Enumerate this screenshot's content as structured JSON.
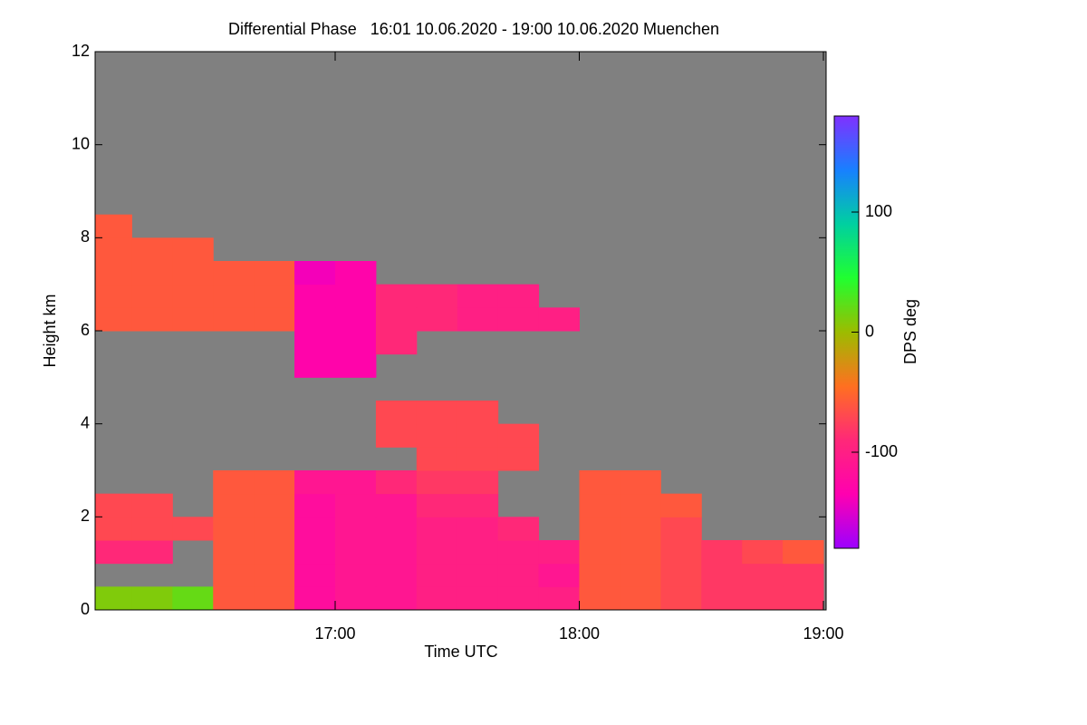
{
  "chart_data": {
    "type": "heatmap",
    "title": "Differential Phase   16:01 10.06.2020 - 19:00 10.06.2020 Muenchen",
    "x_label": "Time UTC",
    "y_label": "Height km",
    "colorbar_label": "DPS deg",
    "xlim": [
      16.0167,
      19.0
    ],
    "ylim": [
      0,
      12
    ],
    "xticks": [
      {
        "value": 17,
        "label": "17:00"
      },
      {
        "value": 18,
        "label": "18:00"
      },
      {
        "value": 19,
        "label": "19:00"
      }
    ],
    "yticks": [
      0,
      2,
      4,
      6,
      8,
      10,
      12
    ],
    "clim": [
      -180,
      180
    ],
    "colorbar_ticks": [
      100,
      0,
      -100
    ],
    "colormap": [
      "#9c00ff",
      "#ff00b0",
      "#ff2878",
      "#ff7020",
      "#9cbc00",
      "#20ff30",
      "#00d0a0",
      "#1880ff",
      "#8030ff"
    ],
    "missing_color": "#808080",
    "x_edges": [
      16,
      16.1667,
      16.3333,
      16.5,
      16.6667,
      16.8333,
      17,
      17.1667,
      17.3333,
      17.5,
      17.6667,
      17.8333,
      18,
      18.1667,
      18.3333,
      18.5,
      18.6667,
      18.8333,
      19
    ],
    "y_edges": [
      0,
      0.5,
      1,
      1.5,
      2,
      2.5,
      3,
      3.5,
      4,
      4.5,
      5,
      5.5,
      6,
      6.5,
      7,
      7.5,
      8,
      8.5
    ],
    "values": [
      [
        10,
        10,
        20,
        -60,
        -60,
        -120,
        -110,
        -110,
        -100,
        -100,
        -100,
        -100,
        -60,
        -60,
        -70,
        -80,
        -80,
        -80
      ],
      [
        null,
        null,
        null,
        -60,
        -60,
        -120,
        -110,
        -110,
        -100,
        -100,
        -100,
        -110,
        -60,
        -60,
        -70,
        -80,
        -80,
        -80
      ],
      [
        -90,
        -90,
        null,
        -60,
        -60,
        -120,
        -110,
        -110,
        -100,
        -100,
        -100,
        -100,
        -60,
        -60,
        -70,
        -80,
        -70,
        -60
      ],
      [
        -70,
        -70,
        -70,
        -60,
        -60,
        -120,
        -110,
        -110,
        -100,
        -100,
        -90,
        null,
        -60,
        -60,
        -70,
        null,
        null,
        null
      ],
      [
        -70,
        -70,
        null,
        -60,
        -60,
        -120,
        -110,
        -110,
        -90,
        -90,
        null,
        null,
        -60,
        -60,
        -60,
        null,
        null,
        null
      ],
      [
        null,
        null,
        null,
        -60,
        -60,
        -110,
        -110,
        -90,
        -80,
        -80,
        null,
        null,
        -60,
        -60,
        null,
        null,
        null,
        null
      ],
      [
        null,
        null,
        null,
        null,
        null,
        null,
        null,
        null,
        -70,
        -70,
        -70,
        null,
        null,
        null,
        null,
        null,
        null,
        null
      ],
      [
        null,
        null,
        null,
        null,
        null,
        null,
        null,
        -70,
        -70,
        -70,
        -70,
        null,
        null,
        null,
        null,
        null,
        null,
        null
      ],
      [
        null,
        null,
        null,
        null,
        null,
        null,
        null,
        -70,
        -70,
        -70,
        null,
        null,
        null,
        null,
        null,
        null,
        null,
        null
      ],
      [
        null,
        null,
        null,
        null,
        null,
        null,
        null,
        null,
        null,
        null,
        null,
        null,
        null,
        null,
        null,
        null,
        null,
        null
      ],
      [
        null,
        null,
        null,
        null,
        null,
        -130,
        -130,
        null,
        null,
        null,
        null,
        null,
        null,
        null,
        null,
        null,
        null,
        null
      ],
      [
        null,
        null,
        null,
        null,
        null,
        -130,
        -130,
        -90,
        null,
        null,
        null,
        null,
        null,
        null,
        null,
        null,
        null,
        null
      ],
      [
        -60,
        -60,
        -60,
        -60,
        -60,
        -130,
        -130,
        -90,
        -90,
        -100,
        -100,
        -100,
        null,
        null,
        null,
        null,
        null,
        null
      ],
      [
        -60,
        -60,
        -60,
        -60,
        -60,
        -130,
        -130,
        -90,
        -90,
        -100,
        -100,
        null,
        null,
        null,
        null,
        null,
        null,
        null
      ],
      [
        -60,
        -60,
        -60,
        -60,
        -60,
        -140,
        -130,
        null,
        null,
        null,
        null,
        null,
        null,
        null,
        null,
        null,
        null,
        null
      ],
      [
        -60,
        -60,
        -60,
        null,
        null,
        null,
        null,
        null,
        null,
        null,
        null,
        null,
        null,
        null,
        null,
        null,
        null,
        null
      ],
      [
        -60,
        null,
        null,
        null,
        null,
        null,
        null,
        null,
        null,
        null,
        null,
        null,
        null,
        null,
        null,
        null,
        null,
        null
      ]
    ]
  }
}
